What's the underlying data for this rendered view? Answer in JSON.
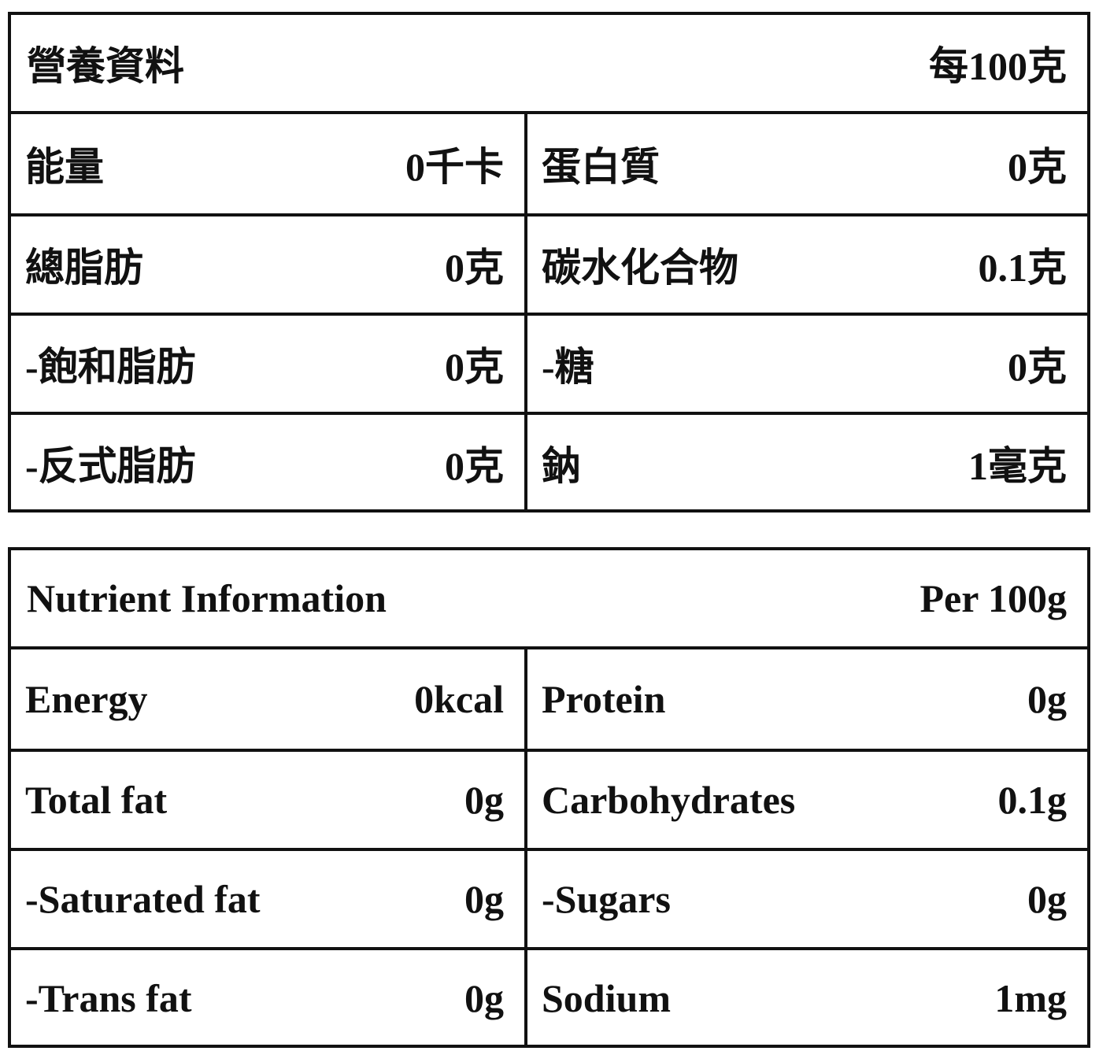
{
  "tables": [
    {
      "title": "營養資料",
      "per": "每100克",
      "rows": [
        [
          "能量",
          "0千卡",
          "蛋白質",
          "0克"
        ],
        [
          "總脂肪",
          "0克",
          "碳水化合物",
          "0.1克"
        ],
        [
          "-飽和脂肪",
          "0克",
          "-糖",
          "0克"
        ],
        [
          "-反式脂肪",
          "0克",
          "鈉",
          "1毫克"
        ]
      ]
    },
    {
      "title": "Nutrient Information",
      "per": "Per 100g",
      "rows": [
        [
          "Energy",
          "0kcal",
          "Protein",
          "0g"
        ],
        [
          "Total fat",
          "0g",
          "Carbohydrates",
          "0.1g"
        ],
        [
          "-Saturated fat",
          "0g",
          "-Sugars",
          "0g"
        ],
        [
          "-Trans fat",
          "0g",
          "Sodium",
          "1mg"
        ]
      ]
    }
  ]
}
